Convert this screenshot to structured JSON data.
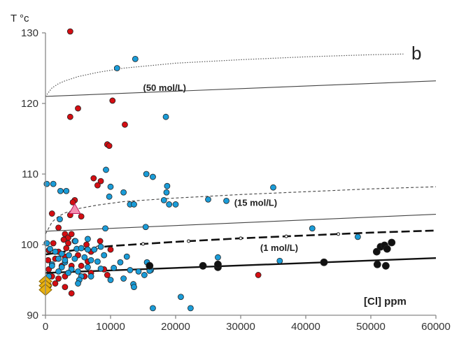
{
  "chart_data": {
    "type": "scatter",
    "ylabel": "T °c",
    "xlabel": "[Cl] ppm",
    "panel_label": "b",
    "xlim": [
      0,
      60000
    ],
    "ylim": [
      90,
      130
    ],
    "x_ticks": [
      0,
      10000,
      20000,
      30000,
      40000,
      50000,
      60000
    ],
    "y_ticks": [
      90,
      100,
      110,
      120,
      130
    ],
    "grid": false,
    "colors": {
      "red": "#d40d12",
      "blue": "#1a9cd8",
      "black": "#111111",
      "pink": "#f48fb1",
      "gold": "#e8b010"
    },
    "annotations": [
      {
        "text": "(50 mol/L)",
        "x": 15000,
        "y": 121.8
      },
      {
        "text": "(15 mol/L)",
        "x": 29000,
        "y": 105.5
      },
      {
        "text": "(1 mol/L)",
        "x": 33000,
        "y": 99.1
      }
    ],
    "curves": [
      {
        "style": "dotted",
        "x": [
          0,
          1000,
          2000,
          3000,
          5000,
          8000,
          12000,
          20000,
          30000,
          40000,
          50000,
          55000
        ],
        "y": [
          121,
          122.2,
          122.8,
          123.2,
          123.8,
          124.4,
          125,
          125.7,
          126.2,
          126.6,
          126.9,
          127
        ]
      },
      {
        "style": "thin",
        "x": [
          0,
          60000
        ],
        "y": [
          121,
          123.2
        ]
      },
      {
        "style": "dashed-thin",
        "x": [
          0,
          1000,
          2000,
          3000,
          5000,
          8000,
          12000,
          20000,
          30000,
          40000,
          50000,
          60000
        ],
        "y": [
          101.5,
          103.2,
          104,
          104.5,
          105.1,
          105.6,
          106.1,
          106.6,
          107.1,
          107.5,
          107.9,
          108.2
        ]
      },
      {
        "style": "thin",
        "x": [
          0,
          60000
        ],
        "y": [
          101.9,
          104.3
        ]
      },
      {
        "style": "dashed-bold",
        "x": [
          0,
          5000,
          10000,
          15000,
          20000,
          30000,
          40000,
          50000,
          60000
        ],
        "y": [
          98.6,
          99.3,
          99.8,
          100.1,
          100.4,
          100.9,
          101.3,
          101.7,
          102
        ]
      },
      {
        "style": "solid-bold",
        "x": [
          0,
          60000
        ],
        "y": [
          96,
          98.1
        ]
      }
    ],
    "series": [
      {
        "marker": "circle",
        "color": "red",
        "points": [
          [
            3800,
            130.2
          ],
          [
            10300,
            120.4
          ],
          [
            5000,
            119.3
          ],
          [
            3800,
            118.1
          ],
          [
            12200,
            117
          ],
          [
            9500,
            114.2
          ],
          [
            9800,
            114
          ],
          [
            7400,
            109.4
          ],
          [
            8500,
            109
          ],
          [
            8000,
            108.4
          ],
          [
            4500,
            106.3
          ],
          [
            4200,
            106
          ],
          [
            1000,
            104.4
          ],
          [
            3800,
            104.2
          ],
          [
            5500,
            104
          ],
          [
            2000,
            102.4
          ],
          [
            3000,
            101.5
          ],
          [
            3500,
            101
          ],
          [
            4000,
            101.5
          ],
          [
            2800,
            100.7
          ],
          [
            1200,
            100.2
          ],
          [
            3500,
            100.2
          ],
          [
            4500,
            100.5
          ],
          [
            8400,
            100.5
          ],
          [
            6300,
            100
          ],
          [
            500,
            99.2
          ],
          [
            2000,
            99
          ],
          [
            3200,
            99.5
          ],
          [
            7000,
            99
          ],
          [
            10000,
            99.3
          ],
          [
            3000,
            98.3
          ],
          [
            5000,
            98.5
          ],
          [
            1500,
            98
          ],
          [
            400,
            97.8
          ],
          [
            6500,
            97.6
          ],
          [
            2500,
            97
          ],
          [
            4000,
            97
          ],
          [
            5500,
            97
          ],
          [
            9000,
            96.5
          ],
          [
            500,
            96.5
          ],
          [
            7000,
            96
          ],
          [
            1000,
            95.5
          ],
          [
            2000,
            95.2
          ],
          [
            3000,
            95.5
          ],
          [
            6000,
            95.5
          ],
          [
            9500,
            95.7
          ],
          [
            1500,
            94.5
          ],
          [
            500,
            94.2
          ],
          [
            3000,
            94
          ],
          [
            4000,
            93.1
          ],
          [
            32700,
            95.7
          ]
        ]
      },
      {
        "marker": "circle",
        "color": "blue",
        "points": [
          [
            11000,
            125
          ],
          [
            13800,
            126.3
          ],
          [
            18500,
            118.1
          ],
          [
            9300,
            110.6
          ],
          [
            15500,
            110
          ],
          [
            16500,
            109.6
          ],
          [
            200,
            108.6
          ],
          [
            1200,
            108.6
          ],
          [
            2300,
            107.6
          ],
          [
            3200,
            107.6
          ],
          [
            10000,
            108.2
          ],
          [
            12000,
            107.4
          ],
          [
            18700,
            108.3
          ],
          [
            18600,
            107.4
          ],
          [
            9800,
            106.8
          ],
          [
            13000,
            105.7
          ],
          [
            13600,
            105.7
          ],
          [
            18200,
            106.3
          ],
          [
            19000,
            105.7
          ],
          [
            20000,
            105.7
          ],
          [
            25000,
            106.4
          ],
          [
            27800,
            106.2
          ],
          [
            35000,
            108.1
          ],
          [
            2200,
            103.6
          ],
          [
            15400,
            102.5
          ],
          [
            9200,
            102.3
          ],
          [
            41000,
            102.3
          ],
          [
            48000,
            101.1
          ],
          [
            4600,
            100.5
          ],
          [
            6500,
            100.8
          ],
          [
            200,
            100.2
          ],
          [
            700,
            99.4
          ],
          [
            1500,
            99
          ],
          [
            2500,
            98.7
          ],
          [
            3600,
            98.5
          ],
          [
            4800,
            99.4
          ],
          [
            5500,
            99.5
          ],
          [
            6500,
            99.3
          ],
          [
            7500,
            99.3
          ],
          [
            8500,
            99.7
          ],
          [
            2000,
            98
          ],
          [
            3000,
            97.5
          ],
          [
            4500,
            98
          ],
          [
            6000,
            98.2
          ],
          [
            7000,
            97.8
          ],
          [
            8000,
            97.6
          ],
          [
            9000,
            98.5
          ],
          [
            12500,
            98.3
          ],
          [
            15600,
            97.5
          ],
          [
            26500,
            98.2
          ],
          [
            36000,
            97.7
          ],
          [
            1000,
            97.2
          ],
          [
            2500,
            96.8
          ],
          [
            4000,
            96.5
          ],
          [
            5000,
            96.2
          ],
          [
            6500,
            96.8
          ],
          [
            8500,
            96.6
          ],
          [
            10500,
            96.7
          ],
          [
            13000,
            96.4
          ],
          [
            16200,
            96.4
          ],
          [
            2000,
            96.2
          ],
          [
            3500,
            96
          ],
          [
            5500,
            95.5
          ],
          [
            7000,
            95.5
          ],
          [
            500,
            95.5
          ],
          [
            5200,
            95
          ],
          [
            5000,
            94.5
          ],
          [
            10000,
            95
          ],
          [
            13500,
            94.4
          ],
          [
            12000,
            95.2
          ],
          [
            16000,
            96.3
          ],
          [
            15200,
            95.7
          ],
          [
            13600,
            94
          ],
          [
            16500,
            91
          ],
          [
            20800,
            92.6
          ],
          [
            22300,
            91
          ],
          [
            1000,
            97
          ],
          [
            3000,
            97.8
          ],
          [
            11500,
            97.5
          ],
          [
            14300,
            96.2
          ]
        ]
      },
      {
        "marker": "circle",
        "color": "black",
        "points": [
          [
            16000,
            97
          ],
          [
            24200,
            97
          ],
          [
            26500,
            96.8
          ],
          [
            26500,
            97.2
          ],
          [
            42800,
            97.5
          ],
          [
            50900,
            99
          ],
          [
            51500,
            99.7
          ],
          [
            52100,
            99.9
          ],
          [
            52500,
            99.4
          ],
          [
            53200,
            100.3
          ],
          [
            51000,
            97.2
          ],
          [
            52300,
            97
          ]
        ]
      },
      {
        "marker": "triangle",
        "color": "pink",
        "points": [
          [
            4500,
            105
          ]
        ]
      },
      {
        "marker": "diamond",
        "color": "gold",
        "points": [
          [
            0,
            94.8
          ],
          [
            0,
            94.2
          ],
          [
            0,
            93.6
          ]
        ]
      }
    ]
  }
}
